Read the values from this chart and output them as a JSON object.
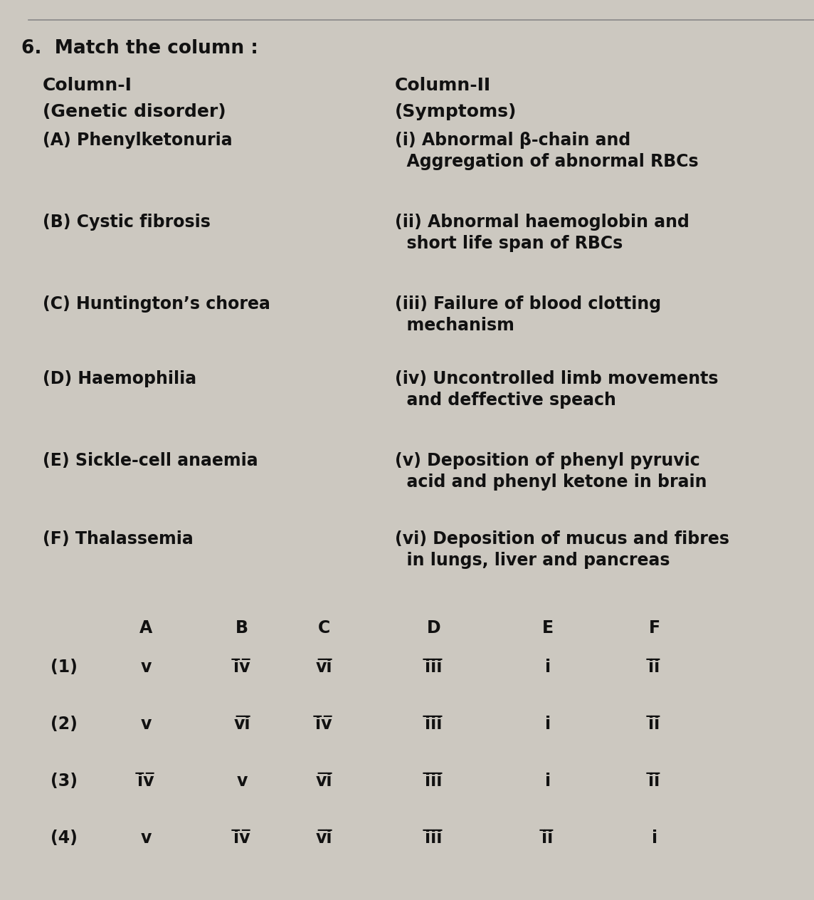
{
  "bg_color": "#ccc8c0",
  "text_color": "#111111",
  "title": "6.  Match the column :",
  "col1_header": "Column-I",
  "col1_subheader": "(Genetic disorder)",
  "col2_header": "Column-II",
  "col2_subheader": "(Symptoms)",
  "col1_items": [
    "(A) Phenylketonuria",
    "(B) Cystic fibrosis",
    "(C) Huntington’s chorea",
    "(D) Haemophilia",
    "(E) Sickle-cell anaemia",
    "(F) Thalassemia"
  ],
  "col2_line1": [
    "(i) Abnormal β-chain and",
    "(ii) Abnormal haemoglobin and",
    "(iii) Failure of blood clotting",
    "(iv) Uncontrolled limb movements",
    "(v) Deposition of phenyl pyruvic",
    "(vi) Deposition of mucus and fibres"
  ],
  "col2_line2": [
    "  Aggregation of abnormal RBCs",
    "  short life span of RBCs",
    "  mechanism",
    "  and deffective speach",
    "  acid and phenyl ketone in brain",
    "  in lungs, liver and pancreas"
  ],
  "answer_header": [
    "",
    "A",
    "B",
    "C",
    "D",
    "E",
    "F"
  ],
  "answers": [
    [
      "(1)",
      "v",
      "i̅v̅",
      "v̅i̅",
      "i̅i̅i̅",
      "i",
      "i̅i̅"
    ],
    [
      "(2)",
      "v",
      "v̅i̅",
      "i̅v̅",
      "i̅i̅i̅",
      "i",
      "i̅i̅"
    ],
    [
      "(3)",
      "i̅v̅",
      "v",
      "v̅i̅",
      "i̅i̅i̅",
      "i",
      "i̅i̅"
    ],
    [
      "(4)",
      "v",
      "i̅v̅",
      "v̅i̅",
      "i̅i̅i̅",
      "i̅i̅",
      "i"
    ]
  ],
  "title_fontsize": 19,
  "header_fontsize": 18,
  "item_fontsize": 17,
  "table_fontsize": 17,
  "line_color": "#888888"
}
